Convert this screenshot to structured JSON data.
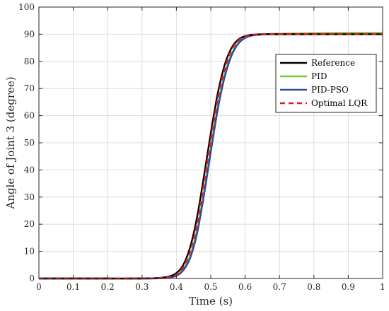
{
  "chart_data": {
    "type": "line",
    "xlabel": "Time (s)",
    "ylabel": "Angle of Joint 3 (degree)",
    "xlim": [
      0,
      1
    ],
    "ylim": [
      0,
      100
    ],
    "xticks": [
      "0",
      "0.1",
      "0.2",
      "0.3",
      "0.4",
      "0.5",
      "0.6",
      "0.7",
      "0.8",
      "0.9",
      "1"
    ],
    "yticks": [
      "0",
      "10",
      "20",
      "30",
      "40",
      "50",
      "60",
      "70",
      "80",
      "90",
      "100"
    ],
    "grid": true,
    "legend_position": "top-right",
    "x": [
      0,
      0.1,
      0.2,
      0.3,
      0.35,
      0.38,
      0.4,
      0.42,
      0.44,
      0.46,
      0.48,
      0.5,
      0.52,
      0.54,
      0.56,
      0.58,
      0.6,
      0.62,
      0.65,
      0.7,
      0.8,
      0.9,
      1.0
    ],
    "series": [
      {
        "name": "Reference",
        "color": "#000000",
        "style": "solid",
        "values": [
          0,
          0,
          0,
          0,
          0.2,
          0.8,
          2.0,
          5.0,
          11.5,
          22.5,
          37.5,
          53.5,
          68.0,
          78.5,
          84.8,
          88.0,
          89.3,
          89.8,
          90.0,
          90.0,
          90.0,
          90.0,
          90.0
        ]
      },
      {
        "name": "PID",
        "color": "#77ca3c",
        "style": "solid",
        "values": [
          0,
          0,
          0,
          0,
          0.1,
          0.5,
          1.2,
          3.5,
          8.5,
          18.0,
          32.0,
          48.0,
          63.5,
          75.0,
          82.5,
          86.8,
          88.8,
          89.6,
          90.0,
          90.2,
          90.4,
          90.5,
          90.5
        ]
      },
      {
        "name": "PID-PSO",
        "color": "#2b4aa6",
        "style": "solid",
        "values": [
          0,
          0,
          0,
          0,
          0.1,
          0.4,
          1.0,
          3.0,
          7.5,
          16.5,
          30.5,
          46.5,
          62.0,
          74.0,
          82.0,
          86.5,
          88.6,
          89.5,
          89.9,
          90.0,
          90.0,
          90.0,
          90.0
        ]
      },
      {
        "name": "Optimal LQR",
        "color": "#e31a1c",
        "style": "dashed",
        "values": [
          0,
          0,
          0,
          0,
          0.15,
          0.6,
          1.5,
          4.2,
          10.0,
          20.0,
          35.0,
          51.0,
          66.0,
          77.0,
          84.0,
          87.6,
          89.1,
          89.7,
          90.0,
          90.0,
          90.0,
          90.0,
          90.0
        ]
      }
    ]
  }
}
